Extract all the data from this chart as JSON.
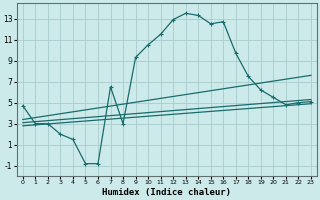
{
  "title": "",
  "xlabel": "Humidex (Indice chaleur)",
  "ylabel": "",
  "background_color": "#cceaea",
  "line_color": "#1a6b6b",
  "grid_color": "#aacccc",
  "xlim": [
    -0.5,
    23.5
  ],
  "ylim": [
    -2,
    14.5
  ],
  "yticks": [
    -1,
    1,
    3,
    5,
    7,
    9,
    11,
    13
  ],
  "xticks": [
    0,
    1,
    2,
    3,
    4,
    5,
    6,
    7,
    8,
    9,
    10,
    11,
    12,
    13,
    14,
    15,
    16,
    17,
    18,
    19,
    20,
    21,
    22,
    23
  ],
  "series": [
    {
      "x": [
        0,
        1,
        2,
        3,
        4,
        5,
        6,
        7,
        8,
        9,
        10,
        11,
        12,
        13,
        14,
        15,
        16,
        17,
        18,
        19,
        20,
        21,
        22,
        23
      ],
      "y": [
        4.7,
        3.0,
        3.0,
        2.0,
        1.5,
        -0.8,
        -0.8,
        6.5,
        3.0,
        9.3,
        10.5,
        11.5,
        12.9,
        13.5,
        13.3,
        12.5,
        12.7,
        9.7,
        7.5,
        6.2,
        5.5,
        4.8,
        5.0,
        5.1
      ]
    },
    {
      "x": [
        0,
        23
      ],
      "y": [
        3.4,
        7.6
      ]
    },
    {
      "x": [
        0,
        23
      ],
      "y": [
        3.1,
        5.3
      ]
    },
    {
      "x": [
        0,
        23
      ],
      "y": [
        2.8,
        4.9
      ]
    }
  ]
}
